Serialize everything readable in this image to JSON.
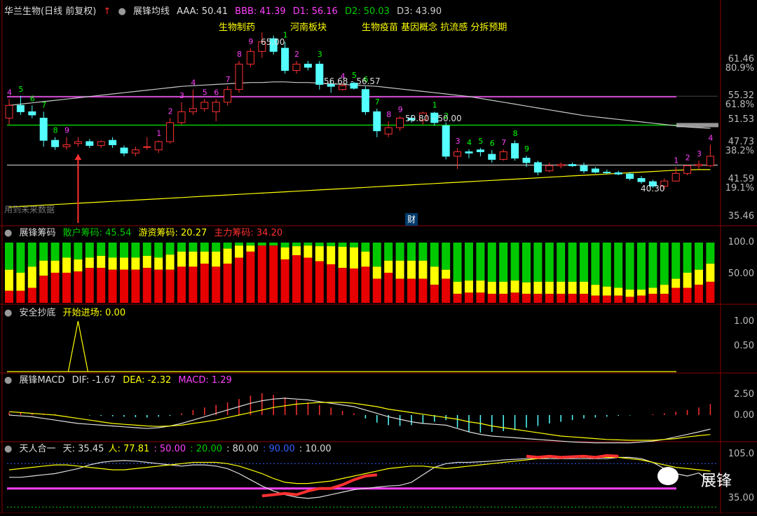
{
  "main_panel": {
    "title": "华兰生物(日线 前复权)",
    "indicator_name": "展锋均线",
    "aaa": "AAA: 50.41",
    "bbb": "BBB: 41.39",
    "d1": "D1: 56.16",
    "d2": "D2: 50.03",
    "d3": "D3: 43.90",
    "annotations": [
      "生物制药",
      "河南板块",
      "生物疫苗 基因概念 抗流感 分拆预期"
    ],
    "price_labels": [
      "65.00",
      "56.68 - 56.57",
      "50.80 - 50.00",
      "40.30"
    ],
    "fin_marker": "财",
    "future_label": "用到未来数据",
    "y_ticks": [
      "61.46",
      "80.9%",
      "55.32",
      "61.8%",
      "51.53",
      "47.73",
      "38.2%",
      "41.59",
      "19.1%",
      "35.46"
    ]
  },
  "chip_panel": {
    "title": "展锋筹码",
    "retail": "散户筹码: 45.54",
    "hot": "游资筹码: 20.27",
    "main": "主力筹码: 34.20",
    "y_ticks": [
      "100.0",
      "50.00"
    ]
  },
  "bottom_panel": {
    "title": "安全抄底",
    "entry": "开始进场: 0.00",
    "y_ticks": [
      "1.00",
      "0.50"
    ]
  },
  "macd_panel": {
    "title": "展锋MACD",
    "dif": "DIF: -1.67",
    "dea": "DEA: -2.32",
    "macd": "MACD: 1.29",
    "y_ticks": [
      "2.50",
      "0.00"
    ]
  },
  "trh_panel": {
    "title": "天人合一",
    "tian": "天: 35.45",
    "ren": "人: 77.81",
    "l50": ": 50.00",
    "l20": ": 20.00",
    "l80": ": 80.00",
    "l90": ": 90.00",
    "l10": ": 10.00",
    "y_ticks": [
      "105.0",
      "35.00"
    ]
  },
  "watermark": "展锋",
  "colors": {
    "up": "#ff3030",
    "down": "#54ffff",
    "ma_white": "#c8c8c8",
    "ma_magenta": "#ff40ff",
    "ma_green": "#00cc00",
    "yellow": "#ffff00",
    "chip_green": "#00c800",
    "chip_yellow": "#ffff00",
    "chip_red": "#e60000",
    "bg": "#000000",
    "grid": "#8b0000"
  },
  "chart_data": {
    "type": "candlestick",
    "candles": [
      {
        "o": 51.5,
        "h": 54.5,
        "l": 50.5,
        "c": 53.5,
        "n": "4"
      },
      {
        "o": 53.5,
        "h": 55.0,
        "l": 52.0,
        "c": 52.5,
        "n": "5"
      },
      {
        "o": 52.5,
        "h": 53.5,
        "l": 51.5,
        "c": 52.0,
        "n": "6"
      },
      {
        "o": 51.5,
        "h": 52.5,
        "l": 47.0,
        "c": 48.0,
        "n": "7"
      },
      {
        "o": 48.0,
        "h": 48.5,
        "l": 46.5,
        "c": 47.0,
        "n": "8"
      },
      {
        "o": 47.0,
        "h": 48.5,
        "l": 46.5,
        "c": 47.3,
        "n": "9"
      },
      {
        "o": 47.5,
        "h": 48.5,
        "l": 47.0,
        "c": 47.8,
        "n": ""
      },
      {
        "o": 47.8,
        "h": 48.2,
        "l": 46.8,
        "c": 47.2,
        "n": ""
      },
      {
        "o": 47.2,
        "h": 48.0,
        "l": 46.8,
        "c": 47.8,
        "n": ""
      },
      {
        "o": 48.0,
        "h": 48.5,
        "l": 46.8,
        "c": 47.3,
        "n": ""
      },
      {
        "o": 46.8,
        "h": 47.2,
        "l": 45.5,
        "c": 46.0,
        "n": ""
      },
      {
        "o": 46.0,
        "h": 47.0,
        "l": 45.5,
        "c": 46.5,
        "n": ""
      },
      {
        "o": 47.0,
        "h": 48.5,
        "l": 46.5,
        "c": 47.0,
        "n": ""
      },
      {
        "o": 46.5,
        "h": 48.0,
        "l": 46.0,
        "c": 47.8,
        "n": "1"
      },
      {
        "o": 47.8,
        "h": 51.5,
        "l": 47.5,
        "c": 50.8,
        "n": "2"
      },
      {
        "o": 50.8,
        "h": 54.0,
        "l": 50.5,
        "c": 52.5,
        "n": "3"
      },
      {
        "o": 52.5,
        "h": 56.0,
        "l": 52.0,
        "c": 53.0,
        "n": "4"
      },
      {
        "o": 53.0,
        "h": 54.5,
        "l": 52.5,
        "c": 54.0,
        "n": "5"
      },
      {
        "o": 52.5,
        "h": 54.5,
        "l": 51.0,
        "c": 54.0,
        "n": "6"
      },
      {
        "o": 54.0,
        "h": 56.5,
        "l": 53.5,
        "c": 56.0,
        "n": "7"
      },
      {
        "o": 56.0,
        "h": 60.5,
        "l": 55.5,
        "c": 60.0,
        "n": "8"
      },
      {
        "o": 60.0,
        "h": 62.5,
        "l": 59.5,
        "c": 62.0,
        "n": "9"
      },
      {
        "o": 62.0,
        "h": 65.0,
        "l": 61.0,
        "c": 63.5,
        "n": ""
      },
      {
        "o": 64.0,
        "h": 64.5,
        "l": 61.5,
        "c": 62.0,
        "n": ""
      },
      {
        "o": 62.5,
        "h": 63.5,
        "l": 58.5,
        "c": 59.0,
        "n": "1"
      },
      {
        "o": 59.0,
        "h": 60.5,
        "l": 58.5,
        "c": 60.0,
        "n": "2"
      },
      {
        "o": 60.0,
        "h": 60.5,
        "l": 59.0,
        "c": 59.5,
        "n": ""
      },
      {
        "o": 60.0,
        "h": 60.5,
        "l": 56.0,
        "c": 56.8,
        "n": "3"
      },
      {
        "o": 56.8,
        "h": 57.5,
        "l": 55.5,
        "c": 56.5,
        "n": ""
      },
      {
        "o": 56.0,
        "h": 57.0,
        "l": 55.8,
        "c": 56.6,
        "n": "4"
      },
      {
        "o": 57.0,
        "h": 57.2,
        "l": 56.0,
        "c": 56.2,
        "n": "5"
      },
      {
        "o": 56.0,
        "h": 56.5,
        "l": 52.0,
        "c": 52.5,
        "n": "6"
      },
      {
        "o": 52.5,
        "h": 53.0,
        "l": 48.5,
        "c": 49.5,
        "n": "7"
      },
      {
        "o": 49.0,
        "h": 51.0,
        "l": 48.5,
        "c": 50.0,
        "n": "8"
      },
      {
        "o": 50.0,
        "h": 51.8,
        "l": 49.5,
        "c": 51.5,
        "n": "9"
      },
      {
        "o": 51.5,
        "h": 52.0,
        "l": 50.8,
        "c": 51.2,
        "n": ""
      },
      {
        "o": 51.2,
        "h": 52.5,
        "l": 50.5,
        "c": 52.3,
        "n": ""
      },
      {
        "o": 52.3,
        "h": 52.5,
        "l": 50.3,
        "c": 50.8,
        "n": "1"
      },
      {
        "o": 50.3,
        "h": 50.8,
        "l": 45.0,
        "c": 45.5,
        "n": "2"
      },
      {
        "o": 45.5,
        "h": 46.8,
        "l": 43.5,
        "c": 46.2,
        "n": "3"
      },
      {
        "o": 46.2,
        "h": 46.6,
        "l": 45.2,
        "c": 46.0,
        "n": "4"
      },
      {
        "o": 46.5,
        "h": 46.8,
        "l": 45.5,
        "c": 46.2,
        "n": "5"
      },
      {
        "o": 45.8,
        "h": 46.5,
        "l": 44.5,
        "c": 45.0,
        "n": "6"
      },
      {
        "o": 45.0,
        "h": 46.6,
        "l": 44.8,
        "c": 46.2,
        "n": "7"
      },
      {
        "o": 47.5,
        "h": 48.0,
        "l": 44.8,
        "c": 45.2,
        "n": "8"
      },
      {
        "o": 45.2,
        "h": 45.6,
        "l": 43.8,
        "c": 44.5,
        "n": "9"
      },
      {
        "o": 44.5,
        "h": 44.8,
        "l": 42.5,
        "c": 43.0,
        "n": ""
      },
      {
        "o": 43.2,
        "h": 44.5,
        "l": 43.0,
        "c": 44.0,
        "n": ""
      },
      {
        "o": 44.0,
        "h": 44.5,
        "l": 43.6,
        "c": 44.2,
        "n": ""
      },
      {
        "o": 44.2,
        "h": 44.5,
        "l": 43.8,
        "c": 44.0,
        "n": ""
      },
      {
        "o": 44.0,
        "h": 44.5,
        "l": 42.8,
        "c": 43.2,
        "n": ""
      },
      {
        "o": 43.5,
        "h": 43.8,
        "l": 42.8,
        "c": 43.0,
        "n": ""
      },
      {
        "o": 43.0,
        "h": 43.4,
        "l": 42.7,
        "c": 42.9,
        "n": ""
      },
      {
        "o": 42.9,
        "h": 43.2,
        "l": 42.5,
        "c": 42.7,
        "n": ""
      },
      {
        "o": 42.7,
        "h": 43.0,
        "l": 41.7,
        "c": 42.0,
        "n": ""
      },
      {
        "o": 42.0,
        "h": 42.4,
        "l": 41.2,
        "c": 41.5,
        "n": ""
      },
      {
        "o": 41.5,
        "h": 41.8,
        "l": 40.5,
        "c": 40.8,
        "n": ""
      },
      {
        "o": 40.8,
        "h": 42.0,
        "l": 40.3,
        "c": 41.6,
        "n": ""
      },
      {
        "o": 41.6,
        "h": 43.8,
        "l": 41.5,
        "c": 42.8,
        "n": "1"
      },
      {
        "o": 42.8,
        "h": 44.2,
        "l": 42.5,
        "c": 44.0,
        "n": "2"
      },
      {
        "o": 44.0,
        "h": 44.8,
        "l": 43.5,
        "c": 44.2,
        "n": "3"
      },
      {
        "o": 44.0,
        "h": 47.3,
        "l": 43.8,
        "c": 45.5,
        "n": "4"
      }
    ],
    "ma_magenta": 54.85,
    "ma_green": 50.4,
    "ma_gray": 44.1,
    "ma_white": [
      53.5,
      53.7,
      53.9,
      54.1,
      54.3,
      54.5,
      54.7,
      54.9,
      55.1,
      55.3,
      55.5,
      55.7,
      55.9,
      56.1,
      56.3,
      56.5,
      56.6,
      56.7,
      56.8,
      56.9,
      57.0,
      57.1,
      57.1,
      57.2,
      57.2,
      57.1,
      57.1,
      57.0,
      56.9,
      56.8,
      56.7,
      56.6,
      56.5,
      56.3,
      56.1,
      55.9,
      55.7,
      55.5,
      55.3,
      55.1,
      54.9,
      54.6,
      54.3,
      54.0,
      53.7,
      53.4,
      53.1,
      52.8,
      52.5,
      52.2,
      51.9,
      51.7,
      51.5,
      51.3,
      51.1,
      50.9,
      50.7,
      50.5,
      50.3,
      50.1,
      50.0,
      49.9
    ],
    "ma_yellow": [
      37.5,
      37.6,
      37.7,
      37.8,
      37.9,
      38.0,
      38.1,
      38.2,
      38.3,
      38.4,
      38.5,
      38.6,
      38.7,
      38.8,
      38.9,
      39.0,
      39.1,
      39.2,
      39.3,
      39.4,
      39.5,
      39.6,
      39.7,
      39.8,
      39.9,
      40.0,
      40.1,
      40.2,
      40.3,
      40.4,
      40.5,
      40.6,
      40.7,
      40.8,
      40.9,
      41.0,
      41.1,
      41.2,
      41.3,
      41.4,
      41.5,
      41.6,
      41.7,
      41.8,
      41.9,
      42.0,
      42.1,
      42.2,
      42.3,
      42.4,
      42.5,
      42.6,
      42.7,
      42.8,
      42.9,
      43.0,
      43.1,
      43.2,
      43.3,
      43.35,
      43.4,
      43.4
    ],
    "ylim": [
      35.0,
      67.0
    ],
    "chips": [
      [
        45,
        35,
        20
      ],
      [
        50,
        30,
        20
      ],
      [
        40,
        35,
        25
      ],
      [
        30,
        25,
        45
      ],
      [
        30,
        20,
        50
      ],
      [
        25,
        25,
        50
      ],
      [
        28,
        20,
        52
      ],
      [
        25,
        17,
        58
      ],
      [
        22,
        20,
        58
      ],
      [
        25,
        20,
        55
      ],
      [
        25,
        20,
        55
      ],
      [
        25,
        20,
        55
      ],
      [
        22,
        20,
        58
      ],
      [
        25,
        20,
        55
      ],
      [
        20,
        25,
        55
      ],
      [
        15,
        25,
        60
      ],
      [
        15,
        25,
        60
      ],
      [
        15,
        20,
        65
      ],
      [
        15,
        25,
        60
      ],
      [
        10,
        25,
        65
      ],
      [
        5,
        20,
        75
      ],
      [
        5,
        10,
        85
      ],
      [
        5,
        0,
        95
      ],
      [
        5,
        0,
        95
      ],
      [
        8,
        20,
        72
      ],
      [
        6,
        15,
        79
      ],
      [
        5,
        20,
        75
      ],
      [
        6,
        25,
        69
      ],
      [
        6,
        30,
        64
      ],
      [
        7,
        35,
        58
      ],
      [
        8,
        35,
        57
      ],
      [
        15,
        25,
        60
      ],
      [
        40,
        20,
        40
      ],
      [
        30,
        20,
        50
      ],
      [
        30,
        30,
        40
      ],
      [
        30,
        30,
        40
      ],
      [
        30,
        30,
        40
      ],
      [
        40,
        30,
        30
      ],
      [
        45,
        15,
        40
      ],
      [
        65,
        20,
        15
      ],
      [
        63,
        20,
        17
      ],
      [
        63,
        20,
        17
      ],
      [
        65,
        20,
        15
      ],
      [
        65,
        20,
        15
      ],
      [
        63,
        20,
        17
      ],
      [
        66,
        19,
        15
      ],
      [
        65,
        20,
        15
      ],
      [
        65,
        20,
        15
      ],
      [
        65,
        20,
        15
      ],
      [
        65,
        20,
        15
      ],
      [
        65,
        20,
        15
      ],
      [
        70,
        18,
        12
      ],
      [
        73,
        15,
        12
      ],
      [
        75,
        13,
        12
      ],
      [
        78,
        12,
        10
      ],
      [
        78,
        10,
        12
      ],
      [
        75,
        10,
        15
      ],
      [
        70,
        15,
        15
      ],
      [
        60,
        15,
        25
      ],
      [
        50,
        25,
        25
      ],
      [
        45,
        25,
        30
      ],
      [
        35,
        30,
        35
      ]
    ],
    "bottom_signal_index": 6,
    "macd_hist": [
      0.3,
      0.25,
      0.2,
      0.15,
      0.1,
      0.05,
      0.0,
      -0.05,
      -0.1,
      -0.15,
      -0.2,
      -0.25,
      -0.3,
      -0.2,
      -0.1,
      0.2,
      0.6,
      0.9,
      1.2,
      1.5,
      1.9,
      2.3,
      2.6,
      2.4,
      2.1,
      1.8,
      1.5,
      1.2,
      0.9,
      0.5,
      0.2,
      -0.4,
      -0.9,
      -1.2,
      -1.3,
      -1.2,
      -1.0,
      -0.8,
      -0.6,
      -1.5,
      -2.0,
      -2.1,
      -2.0,
      -1.9,
      -1.8,
      -1.5,
      -1.3,
      -1.0,
      -0.8,
      -0.6,
      -0.4,
      -0.3,
      -0.2,
      -0.1,
      -0.05,
      0.0,
      0.1,
      0.2,
      0.4,
      0.6,
      0.9,
      1.3
    ],
    "macd_dif": [
      0.0,
      -0.1,
      -0.2,
      -0.4,
      -0.6,
      -0.8,
      -1.0,
      -1.1,
      -1.2,
      -1.3,
      -1.4,
      -1.5,
      -1.6,
      -1.5,
      -1.3,
      -1.0,
      -0.6,
      -0.2,
      0.2,
      0.6,
      1.0,
      1.4,
      1.7,
      1.9,
      2.0,
      1.9,
      1.8,
      1.6,
      1.4,
      1.2,
      1.0,
      0.6,
      0.2,
      -0.2,
      -0.5,
      -0.8,
      -1.0,
      -1.1,
      -1.2,
      -1.6,
      -2.0,
      -2.3,
      -2.5,
      -2.6,
      -2.7,
      -2.8,
      -2.9,
      -3.0,
      -3.1,
      -3.2,
      -3.25,
      -3.3,
      -3.3,
      -3.3,
      -3.3,
      -3.2,
      -3.1,
      -2.9,
      -2.6,
      -2.3,
      -2.0,
      -1.67
    ],
    "macd_dea": [
      0.4,
      0.3,
      0.2,
      0.1,
      0.0,
      -0.2,
      -0.4,
      -0.6,
      -0.8,
      -1.0,
      -1.1,
      -1.2,
      -1.3,
      -1.35,
      -1.3,
      -1.2,
      -1.0,
      -0.8,
      -0.6,
      -0.3,
      0.0,
      0.3,
      0.6,
      0.9,
      1.1,
      1.3,
      1.4,
      1.5,
      1.5,
      1.5,
      1.4,
      1.2,
      1.0,
      0.7,
      0.5,
      0.3,
      0.1,
      -0.1,
      -0.3,
      -0.5,
      -0.8,
      -1.0,
      -1.3,
      -1.5,
      -1.7,
      -1.9,
      -2.1,
      -2.3,
      -2.5,
      -2.6,
      -2.7,
      -2.8,
      -2.9,
      -2.95,
      -3.0,
      -3.0,
      -3.0,
      -2.9,
      -2.8,
      -2.6,
      -2.45,
      -2.32
    ],
    "macd_ylim": [
      -4.0,
      3.0
    ],
    "trh_white": [
      68,
      68,
      70,
      72,
      74,
      78,
      82,
      88,
      92,
      94,
      95,
      94,
      92,
      90,
      88,
      86,
      88,
      88,
      86,
      82,
      74,
      64,
      54,
      46,
      40,
      36,
      34,
      36,
      40,
      44,
      48,
      50,
      52,
      54,
      55,
      60,
      72,
      84,
      90,
      92,
      92,
      93,
      94,
      96,
      97,
      98,
      98,
      98,
      98,
      98,
      98,
      98,
      98,
      100,
      100,
      98,
      92,
      82,
      74,
      70,
      75,
      60
    ],
    "trh_yellow": [
      80,
      82,
      84,
      86,
      88,
      88,
      86,
      84,
      82,
      80,
      80,
      82,
      84,
      86,
      88,
      90,
      92,
      92,
      92,
      90,
      86,
      80,
      74,
      66,
      60,
      58,
      58,
      60,
      62,
      66,
      70,
      74,
      78,
      82,
      84,
      86,
      86,
      84,
      82,
      84,
      86,
      88,
      90,
      92,
      94,
      96,
      98,
      100,
      100,
      100,
      100,
      100,
      100,
      100,
      98,
      96,
      92,
      88,
      84,
      82,
      80,
      78
    ],
    "trh_red": [
      null,
      null,
      null,
      null,
      null,
      null,
      null,
      null,
      null,
      null,
      null,
      null,
      null,
      null,
      null,
      null,
      null,
      null,
      null,
      null,
      null,
      null,
      38,
      40,
      42,
      40,
      46,
      50,
      50,
      56,
      64,
      70,
      72,
      null,
      null,
      null,
      null,
      null,
      null,
      null,
      null,
      null,
      null,
      null,
      null,
      102,
      100,
      102,
      100,
      101,
      102,
      100,
      103,
      102,
      null,
      null,
      null,
      null,
      null,
      null,
      null,
      null
    ],
    "trh_ylim": [
      20,
      110
    ]
  }
}
